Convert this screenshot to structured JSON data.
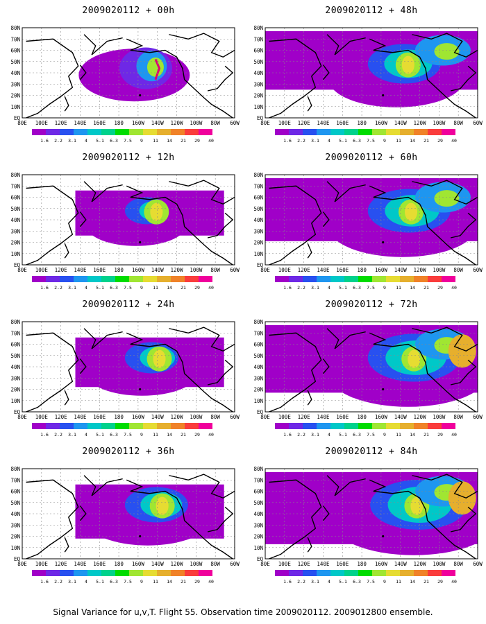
{
  "colors": {
    "scale": [
      "#a000c8",
      "#6e28e6",
      "#2850f0",
      "#1e96f0",
      "#00c8c8",
      "#00d28c",
      "#00dc00",
      "#a0e632",
      "#e6dc32",
      "#e6af2d",
      "#f08228",
      "#fa3c3c",
      "#f0009c"
    ],
    "coast": "#000000",
    "grid": "#888888",
    "highlight": "#e00070"
  },
  "map": {
    "lat_labels": [
      "80N",
      "70N",
      "60N",
      "50N",
      "40N",
      "30N",
      "20N",
      "10N",
      "EQ"
    ],
    "lon_labels": [
      "80E",
      "100E",
      "120E",
      "140E",
      "160E",
      "180",
      "160W",
      "140W",
      "120W",
      "100W",
      "80W",
      "60W"
    ],
    "colorbar_labels": [
      "1.6",
      "2.2",
      "3.1",
      "4",
      "5.1",
      "6.3",
      "7.5",
      "9",
      "11",
      "14",
      "21",
      "29",
      "40"
    ]
  },
  "panels": [
    {
      "title": "2009020112 + 00h",
      "level": 0
    },
    {
      "title": "2009020112 + 12h",
      "level": 1
    },
    {
      "title": "2009020112 + 24h",
      "level": 2
    },
    {
      "title": "2009020112 + 36h",
      "level": 3
    },
    {
      "title": "2009020112 + 48h",
      "level": 4
    },
    {
      "title": "2009020112 + 60h",
      "level": 5
    },
    {
      "title": "2009020112 + 72h",
      "level": 6
    },
    {
      "title": "2009020112 + 84h",
      "level": 7
    }
  ],
  "caption": "Signal Variance for u,v,T. Flight 55. Observation time 2009020112. 2009012800 ensemble."
}
